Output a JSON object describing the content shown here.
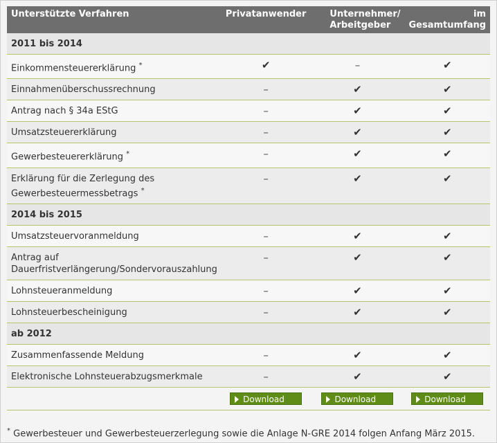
{
  "header": {
    "col1": "Unterstützte Verfahren",
    "col2": "Privatanwender",
    "col3": "Unternehmer/ Arbeitgeber",
    "col4": "im Gesamtumfang"
  },
  "icons": {
    "yes": "check-icon",
    "no": "dash-icon"
  },
  "marks": {
    "yes": "✔",
    "no": "–"
  },
  "sections": [
    {
      "title": "2011 bis 2014",
      "rows": [
        {
          "label": "Einkommensteuererklärung",
          "star": "*",
          "vals": [
            "yes",
            "no",
            "yes"
          ]
        },
        {
          "label": "Einnahmenüberschussrechnung",
          "star": "",
          "vals": [
            "no",
            "yes",
            "yes"
          ]
        },
        {
          "label": "Antrag nach § 34a EStG",
          "star": "",
          "vals": [
            "no",
            "yes",
            "yes"
          ]
        },
        {
          "label": "Umsatzsteuererklärung",
          "star": "",
          "vals": [
            "no",
            "yes",
            "yes"
          ]
        },
        {
          "label": "Gewerbesteuererklärung",
          "star": "*",
          "vals": [
            "no",
            "yes",
            "yes"
          ]
        },
        {
          "label": "Erklärung für die Zerlegung des Gewerbesteuermessbetrags",
          "star": "*",
          "vals": [
            "no",
            "yes",
            "yes"
          ]
        }
      ]
    },
    {
      "title": "2014 bis 2015",
      "rows": [
        {
          "label": "Umsatzsteuervoranmeldung",
          "star": "",
          "vals": [
            "no",
            "yes",
            "yes"
          ]
        },
        {
          "label": "Antrag auf Dauerfristverlängerung/Sondervorauszahlung",
          "star": "",
          "vals": [
            "no",
            "yes",
            "yes"
          ]
        },
        {
          "label": "Lohnsteueranmeldung",
          "star": "",
          "vals": [
            "no",
            "yes",
            "yes"
          ]
        },
        {
          "label": "Lohnsteuerbescheinigung",
          "star": "",
          "vals": [
            "no",
            "yes",
            "yes"
          ]
        }
      ]
    },
    {
      "title": "ab 2012",
      "rows": [
        {
          "label": "Zusammenfassende Meldung",
          "star": "",
          "vals": [
            "no",
            "yes",
            "yes"
          ]
        },
        {
          "label": "Elektronische Lohnsteuerabzugsmerkmale",
          "star": "",
          "vals": [
            "no",
            "yes",
            "yes"
          ]
        }
      ]
    }
  ],
  "download_label": "Download",
  "footnote": {
    "star": "*",
    "text": "Gewerbesteuer und Gewerbesteuerzerlegung sowie die Anlage N-GRE 2014 folgen Anfang März 2015."
  },
  "colors": {
    "header": "#6e6e6e",
    "button": "#5e8c16",
    "rule": "#b7c46a"
  }
}
